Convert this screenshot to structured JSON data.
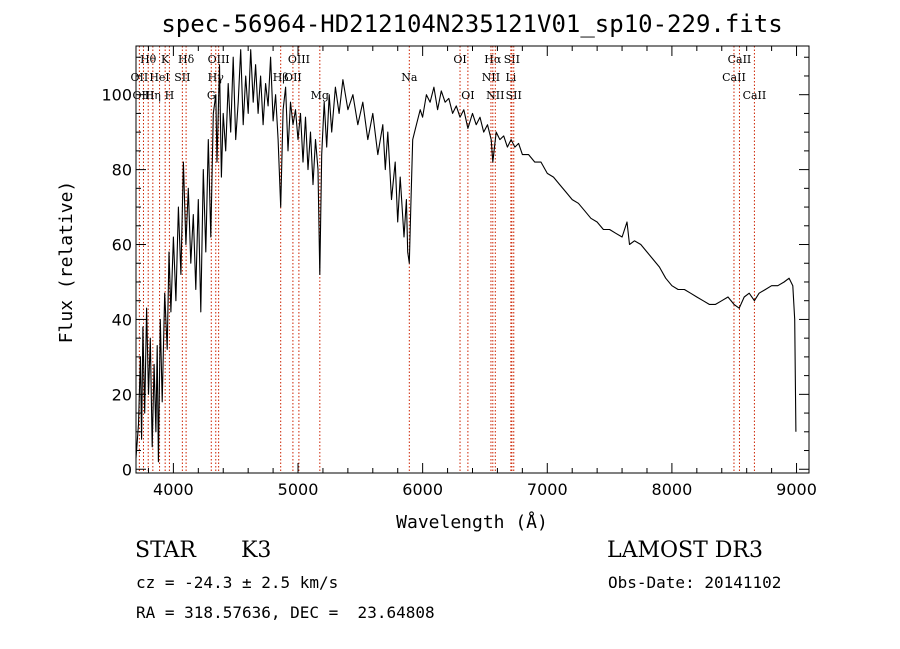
{
  "chart_data": {
    "type": "line",
    "title": "spec-56964-HD212104N235121V01_sp10-229.fits",
    "xlabel": "Wavelength (Å)",
    "ylabel": "Flux (relative)",
    "xlim": [
      3700,
      9100
    ],
    "ylim": [
      -1,
      113
    ],
    "xticks": [
      4000,
      5000,
      6000,
      7000,
      8000,
      9000
    ],
    "yticks": [
      0,
      20,
      40,
      60,
      80,
      100
    ],
    "grid": false,
    "series": [
      {
        "points": [
          [
            3700,
            3
          ],
          [
            3720,
            12
          ],
          [
            3735,
            30
          ],
          [
            3745,
            8
          ],
          [
            3755,
            38
          ],
          [
            3770,
            15
          ],
          [
            3785,
            43
          ],
          [
            3800,
            20
          ],
          [
            3815,
            35
          ],
          [
            3830,
            6
          ],
          [
            3845,
            28
          ],
          [
            3860,
            10
          ],
          [
            3870,
            33
          ],
          [
            3880,
            2
          ],
          [
            3895,
            40
          ],
          [
            3910,
            18
          ],
          [
            3930,
            47
          ],
          [
            3950,
            32
          ],
          [
            3965,
            58
          ],
          [
            3980,
            42
          ],
          [
            4000,
            62
          ],
          [
            4020,
            45
          ],
          [
            4040,
            70
          ],
          [
            4060,
            52
          ],
          [
            4080,
            82
          ],
          [
            4100,
            60
          ],
          [
            4120,
            75
          ],
          [
            4140,
            55
          ],
          [
            4160,
            68
          ],
          [
            4180,
            48
          ],
          [
            4200,
            72
          ],
          [
            4220,
            42
          ],
          [
            4240,
            80
          ],
          [
            4260,
            58
          ],
          [
            4280,
            88
          ],
          [
            4300,
            62
          ],
          [
            4320,
            95
          ],
          [
            4340,
            100
          ],
          [
            4350,
            82
          ],
          [
            4370,
            108
          ],
          [
            4385,
            78
          ],
          [
            4400,
            95
          ],
          [
            4420,
            85
          ],
          [
            4440,
            103
          ],
          [
            4460,
            90
          ],
          [
            4480,
            110
          ],
          [
            4500,
            88
          ],
          [
            4520,
            98
          ],
          [
            4540,
            112
          ],
          [
            4560,
            92
          ],
          [
            4580,
            105
          ],
          [
            4600,
            95
          ],
          [
            4620,
            112
          ],
          [
            4640,
            98
          ],
          [
            4660,
            108
          ],
          [
            4680,
            95
          ],
          [
            4700,
            105
          ],
          [
            4720,
            92
          ],
          [
            4740,
            103
          ],
          [
            4760,
            97
          ],
          [
            4780,
            110
          ],
          [
            4800,
            93
          ],
          [
            4820,
            100
          ],
          [
            4840,
            88
          ],
          [
            4861,
            70
          ],
          [
            4880,
            96
          ],
          [
            4900,
            102
          ],
          [
            4920,
            85
          ],
          [
            4940,
            98
          ],
          [
            4960,
            92
          ],
          [
            4980,
            96
          ],
          [
            5000,
            88
          ],
          [
            5020,
            95
          ],
          [
            5040,
            82
          ],
          [
            5060,
            94
          ],
          [
            5080,
            80
          ],
          [
            5100,
            90
          ],
          [
            5120,
            76
          ],
          [
            5140,
            88
          ],
          [
            5160,
            80
          ],
          [
            5175,
            52
          ],
          [
            5190,
            84
          ],
          [
            5210,
            98
          ],
          [
            5230,
            86
          ],
          [
            5250,
            100
          ],
          [
            5270,
            90
          ],
          [
            5300,
            102
          ],
          [
            5330,
            95
          ],
          [
            5360,
            104
          ],
          [
            5400,
            96
          ],
          [
            5440,
            100
          ],
          [
            5480,
            92
          ],
          [
            5520,
            98
          ],
          [
            5560,
            88
          ],
          [
            5600,
            95
          ],
          [
            5640,
            84
          ],
          [
            5680,
            92
          ],
          [
            5700,
            80
          ],
          [
            5720,
            90
          ],
          [
            5750,
            72
          ],
          [
            5780,
            82
          ],
          [
            5800,
            66
          ],
          [
            5820,
            78
          ],
          [
            5850,
            62
          ],
          [
            5870,
            72
          ],
          [
            5880,
            58
          ],
          [
            5893,
            55
          ],
          [
            5905,
            70
          ],
          [
            5920,
            88
          ],
          [
            5950,
            92
          ],
          [
            5980,
            96
          ],
          [
            6000,
            94
          ],
          [
            6030,
            100
          ],
          [
            6060,
            98
          ],
          [
            6090,
            102
          ],
          [
            6120,
            96
          ],
          [
            6150,
            101
          ],
          [
            6180,
            98
          ],
          [
            6210,
            99
          ],
          [
            6240,
            95
          ],
          [
            6270,
            97
          ],
          [
            6300,
            94
          ],
          [
            6330,
            96
          ],
          [
            6363,
            91
          ],
          [
            6400,
            95
          ],
          [
            6430,
            92
          ],
          [
            6460,
            94
          ],
          [
            6490,
            90
          ],
          [
            6520,
            92
          ],
          [
            6550,
            88
          ],
          [
            6563,
            82
          ],
          [
            6590,
            90
          ],
          [
            6620,
            88
          ],
          [
            6650,
            89
          ],
          [
            6680,
            86
          ],
          [
            6710,
            88
          ],
          [
            6740,
            86
          ],
          [
            6770,
            87
          ],
          [
            6800,
            84
          ],
          [
            6850,
            84
          ],
          [
            6900,
            82
          ],
          [
            6950,
            82
          ],
          [
            7000,
            79
          ],
          [
            7050,
            78
          ],
          [
            7100,
            76
          ],
          [
            7150,
            74
          ],
          [
            7200,
            72
          ],
          [
            7250,
            71
          ],
          [
            7300,
            69
          ],
          [
            7350,
            67
          ],
          [
            7400,
            66
          ],
          [
            7450,
            64
          ],
          [
            7500,
            64
          ],
          [
            7550,
            63
          ],
          [
            7600,
            62
          ],
          [
            7640,
            66
          ],
          [
            7660,
            60
          ],
          [
            7700,
            61
          ],
          [
            7750,
            60
          ],
          [
            7800,
            58
          ],
          [
            7850,
            56
          ],
          [
            7900,
            54
          ],
          [
            7950,
            51
          ],
          [
            8000,
            49
          ],
          [
            8050,
            48
          ],
          [
            8100,
            48
          ],
          [
            8150,
            47
          ],
          [
            8200,
            46
          ],
          [
            8250,
            45
          ],
          [
            8300,
            44
          ],
          [
            8350,
            44
          ],
          [
            8400,
            45
          ],
          [
            8450,
            46
          ],
          [
            8498,
            44
          ],
          [
            8540,
            43
          ],
          [
            8580,
            46
          ],
          [
            8620,
            47
          ],
          [
            8662,
            45
          ],
          [
            8700,
            47
          ],
          [
            8750,
            48
          ],
          [
            8800,
            49
          ],
          [
            8850,
            49
          ],
          [
            8900,
            50
          ],
          [
            8940,
            51
          ],
          [
            8970,
            49
          ],
          [
            8985,
            40
          ],
          [
            8995,
            10
          ]
        ]
      }
    ],
    "line_markers": [
      {
        "label": "Hθ",
        "wl": 3798,
        "row": 0
      },
      {
        "label": "OII",
        "wl": 3727,
        "row": 1
      },
      {
        "label": "OIII",
        "wl": 3760,
        "row": 2
      },
      {
        "label": "K",
        "wl": 3934,
        "row": 0
      },
      {
        "label": "HeI",
        "wl": 3889,
        "row": 1
      },
      {
        "label": "Hη",
        "wl": 3835,
        "row": 2
      },
      {
        "label": "Hδ",
        "wl": 4102,
        "row": 0
      },
      {
        "label": "SII",
        "wl": 4072,
        "row": 1
      },
      {
        "label": "H",
        "wl": 3968,
        "row": 2
      },
      {
        "label": "OIII",
        "wl": 4363,
        "row": 0
      },
      {
        "label": "Hγ",
        "wl": 4340,
        "row": 1
      },
      {
        "label": "G",
        "wl": 4304,
        "row": 2
      },
      {
        "label": "OIII",
        "wl": 5007,
        "row": 0
      },
      {
        "label": "OII",
        "wl": 4959,
        "row": 1
      },
      {
        "label": "Hβ",
        "wl": 4861,
        "row": 1
      },
      {
        "label": "Mg",
        "wl": 5175,
        "row": 2
      },
      {
        "label": "Na",
        "wl": 5893,
        "row": 1
      },
      {
        "label": "OI",
        "wl": 6300,
        "row": 0
      },
      {
        "label": "OI",
        "wl": 6363,
        "row": 2
      },
      {
        "label": "Hα",
        "wl": 6563,
        "row": 0
      },
      {
        "label": "SII",
        "wl": 6716,
        "row": 0
      },
      {
        "label": "NII",
        "wl": 6548,
        "row": 1
      },
      {
        "label": "Li",
        "wl": 6708,
        "row": 1
      },
      {
        "label": "NII",
        "wl": 6583,
        "row": 2
      },
      {
        "label": "SII",
        "wl": 6731,
        "row": 2
      },
      {
        "label": "CaII",
        "wl": 8542,
        "row": 0
      },
      {
        "label": "CaII",
        "wl": 8498,
        "row": 1
      },
      {
        "label": "CaII",
        "wl": 8662,
        "row": 2
      }
    ]
  },
  "info": {
    "object_class": "STAR",
    "subclass": "K3",
    "survey": "LAMOST DR3",
    "cz": "cz = -24.3 ± 2.5 km/s",
    "obs_date": "Obs-Date: 20141102",
    "coords": "RA = 318.57636, DEC =  23.64808"
  },
  "colors": {
    "spectrum": "#000000",
    "line_markers": "#cc2200",
    "axes": "#000000"
  }
}
